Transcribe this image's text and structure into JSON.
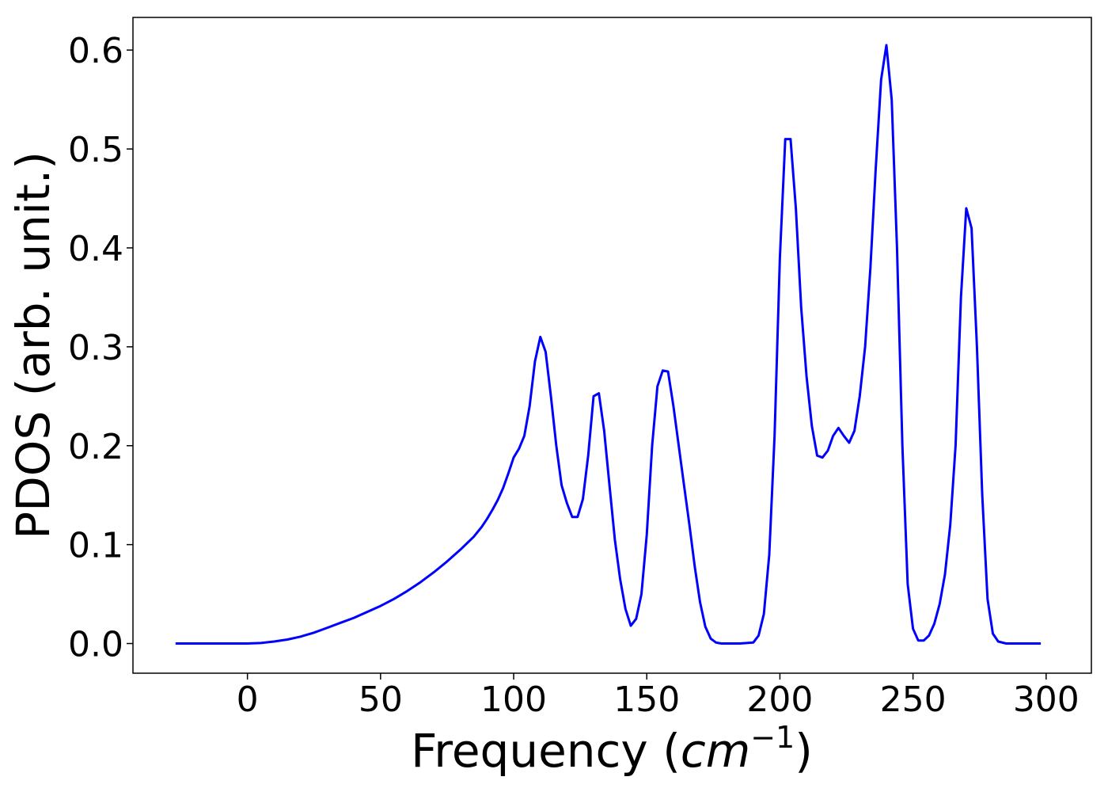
{
  "chart_data": {
    "type": "line",
    "xlabel": "Frequency ",
    "xlabel_math_base": "cm",
    "xlabel_math_sup": "−1",
    "ylabel": "PDOS (arb. unit.)",
    "xlim": [
      -43,
      317
    ],
    "ylim": [
      -0.03,
      0.633
    ],
    "xticks": [
      0,
      50,
      100,
      150,
      200,
      250,
      300
    ],
    "yticks": [
      0.0,
      0.1,
      0.2,
      0.3,
      0.4,
      0.5,
      0.6
    ],
    "xtick_labels": [
      "0",
      "50",
      "100",
      "150",
      "200",
      "250",
      "300"
    ],
    "ytick_labels": [
      "0.0",
      "0.1",
      "0.2",
      "0.3",
      "0.4",
      "0.5",
      "0.6"
    ],
    "grid": false,
    "series": [
      {
        "color": "#0000ff",
        "x": [
          -27,
          -10,
          0,
          5,
          10,
          15,
          20,
          25,
          30,
          35,
          40,
          45,
          50,
          55,
          60,
          65,
          70,
          75,
          80,
          85,
          88,
          90,
          92,
          94,
          96,
          98,
          100,
          102,
          104,
          106,
          108,
          110,
          112,
          114,
          116,
          118,
          120,
          122,
          124,
          126,
          128,
          130,
          132,
          134,
          136,
          138,
          140,
          142,
          144,
          146,
          148,
          150,
          152,
          154,
          156,
          158,
          160,
          162,
          164,
          166,
          168,
          170,
          172,
          174,
          176,
          178,
          180,
          185,
          190,
          192,
          194,
          196,
          198,
          200,
          202,
          204,
          206,
          208,
          210,
          212,
          214,
          216,
          218,
          220,
          222,
          224,
          226,
          228,
          230,
          232,
          234,
          236,
          238,
          240,
          242,
          244,
          246,
          248,
          250,
          252,
          254,
          256,
          258,
          260,
          262,
          264,
          266,
          268,
          270,
          272,
          274,
          276,
          278,
          280,
          282,
          285,
          290,
          298
        ],
        "y": [
          0.0,
          0.0,
          0.0,
          0.0005,
          0.002,
          0.004,
          0.007,
          0.011,
          0.016,
          0.021,
          0.026,
          0.032,
          0.038,
          0.045,
          0.053,
          0.062,
          0.072,
          0.083,
          0.095,
          0.108,
          0.118,
          0.126,
          0.135,
          0.145,
          0.157,
          0.172,
          0.188,
          0.197,
          0.21,
          0.24,
          0.285,
          0.31,
          0.295,
          0.25,
          0.2,
          0.16,
          0.142,
          0.128,
          0.128,
          0.146,
          0.19,
          0.25,
          0.253,
          0.215,
          0.16,
          0.105,
          0.065,
          0.035,
          0.018,
          0.025,
          0.05,
          0.11,
          0.2,
          0.26,
          0.276,
          0.275,
          0.24,
          0.2,
          0.16,
          0.12,
          0.078,
          0.042,
          0.017,
          0.005,
          0.001,
          0.0,
          0.0,
          0.0,
          0.001,
          0.008,
          0.03,
          0.09,
          0.21,
          0.39,
          0.51,
          0.51,
          0.44,
          0.34,
          0.27,
          0.22,
          0.19,
          0.188,
          0.195,
          0.21,
          0.218,
          0.21,
          0.203,
          0.215,
          0.25,
          0.3,
          0.38,
          0.48,
          0.57,
          0.605,
          0.55,
          0.4,
          0.2,
          0.06,
          0.015,
          0.003,
          0.003,
          0.008,
          0.02,
          0.04,
          0.07,
          0.12,
          0.2,
          0.35,
          0.44,
          0.42,
          0.3,
          0.15,
          0.045,
          0.01,
          0.002,
          0.0,
          0.0,
          0.0
        ]
      }
    ]
  }
}
